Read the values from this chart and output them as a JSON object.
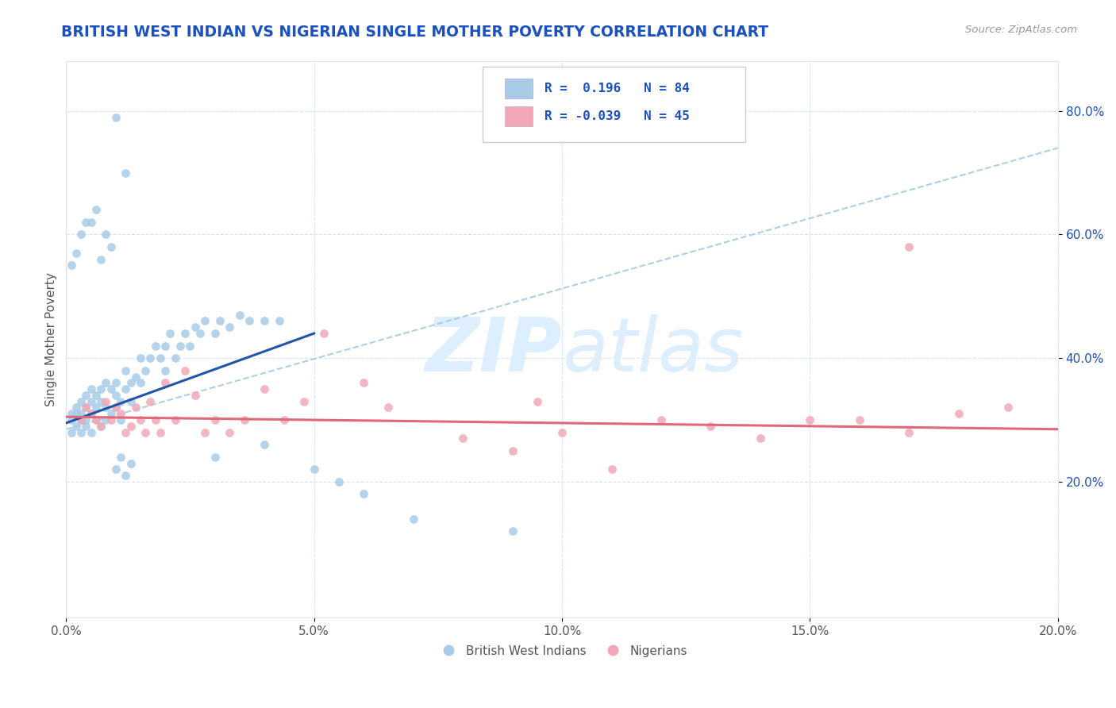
{
  "title": "BRITISH WEST INDIAN VS NIGERIAN SINGLE MOTHER POVERTY CORRELATION CHART",
  "source_text": "Source: ZipAtlas.com",
  "ylabel": "Single Mother Poverty",
  "xlim": [
    0.0,
    0.2
  ],
  "ylim": [
    -0.02,
    0.88
  ],
  "xtick_labels": [
    "0.0%",
    "5.0%",
    "10.0%",
    "15.0%",
    "20.0%"
  ],
  "xtick_vals": [
    0.0,
    0.05,
    0.1,
    0.15,
    0.2
  ],
  "ytick_labels": [
    "20.0%",
    "40.0%",
    "60.0%",
    "80.0%"
  ],
  "ytick_vals": [
    0.2,
    0.4,
    0.6,
    0.8
  ],
  "blue_color": "#a8cce8",
  "pink_color": "#f0a8b8",
  "blue_line_color": "#2255aa",
  "pink_line_color": "#e06878",
  "dash_line_color": "#a8c8e0",
  "watermark_color": "#ddeeff",
  "legend_r_color": "#1a50c0",
  "title_color": "#1a50c0",
  "background_color": "#ffffff",
  "grid_color": "#d8e4f0",
  "blue_line_x0": 0.0,
  "blue_line_y0": 0.295,
  "blue_line_x1": 0.05,
  "blue_line_y1": 0.44,
  "pink_line_x0": 0.0,
  "pink_line_y0": 0.305,
  "pink_line_x1": 0.2,
  "pink_line_y1": 0.285,
  "dash_line_x0": 0.0,
  "dash_line_y0": 0.285,
  "dash_line_x1": 0.2,
  "dash_line_y1": 0.74,
  "blue_x": [
    0.001,
    0.001,
    0.001,
    0.002,
    0.002,
    0.002,
    0.003,
    0.003,
    0.003,
    0.003,
    0.004,
    0.004,
    0.004,
    0.004,
    0.005,
    0.005,
    0.005,
    0.005,
    0.006,
    0.006,
    0.006,
    0.007,
    0.007,
    0.007,
    0.008,
    0.008,
    0.008,
    0.009,
    0.009,
    0.01,
    0.01,
    0.01,
    0.011,
    0.011,
    0.012,
    0.012,
    0.013,
    0.013,
    0.014,
    0.015,
    0.015,
    0.016,
    0.017,
    0.018,
    0.019,
    0.02,
    0.02,
    0.021,
    0.022,
    0.023,
    0.024,
    0.025,
    0.026,
    0.027,
    0.028,
    0.03,
    0.031,
    0.033,
    0.035,
    0.037,
    0.04,
    0.043,
    0.001,
    0.002,
    0.003,
    0.004,
    0.005,
    0.006,
    0.007,
    0.008,
    0.009,
    0.01,
    0.011,
    0.012,
    0.013,
    0.03,
    0.04,
    0.05,
    0.055,
    0.06,
    0.07,
    0.09,
    0.01,
    0.012
  ],
  "blue_y": [
    0.3,
    0.31,
    0.28,
    0.32,
    0.29,
    0.31,
    0.3,
    0.33,
    0.28,
    0.31,
    0.34,
    0.3,
    0.32,
    0.29,
    0.33,
    0.31,
    0.35,
    0.28,
    0.34,
    0.32,
    0.3,
    0.35,
    0.33,
    0.29,
    0.36,
    0.32,
    0.3,
    0.35,
    0.31,
    0.34,
    0.32,
    0.36,
    0.33,
    0.3,
    0.35,
    0.38,
    0.36,
    0.33,
    0.37,
    0.36,
    0.4,
    0.38,
    0.4,
    0.42,
    0.4,
    0.42,
    0.38,
    0.44,
    0.4,
    0.42,
    0.44,
    0.42,
    0.45,
    0.44,
    0.46,
    0.44,
    0.46,
    0.45,
    0.47,
    0.46,
    0.46,
    0.46,
    0.55,
    0.57,
    0.6,
    0.62,
    0.62,
    0.64,
    0.56,
    0.6,
    0.58,
    0.22,
    0.24,
    0.21,
    0.23,
    0.24,
    0.26,
    0.22,
    0.2,
    0.18,
    0.14,
    0.12,
    0.79,
    0.7
  ],
  "pink_x": [
    0.003,
    0.004,
    0.005,
    0.006,
    0.007,
    0.008,
    0.009,
    0.01,
    0.011,
    0.012,
    0.013,
    0.014,
    0.015,
    0.016,
    0.017,
    0.018,
    0.019,
    0.02,
    0.022,
    0.024,
    0.026,
    0.028,
    0.03,
    0.033,
    0.036,
    0.04,
    0.044,
    0.048,
    0.052,
    0.06,
    0.065,
    0.08,
    0.09,
    0.095,
    0.1,
    0.11,
    0.12,
    0.13,
    0.14,
    0.15,
    0.16,
    0.17,
    0.18,
    0.19,
    0.17
  ],
  "pink_y": [
    0.3,
    0.32,
    0.31,
    0.3,
    0.29,
    0.33,
    0.3,
    0.32,
    0.31,
    0.28,
    0.29,
    0.32,
    0.3,
    0.28,
    0.33,
    0.3,
    0.28,
    0.36,
    0.3,
    0.38,
    0.34,
    0.28,
    0.3,
    0.28,
    0.3,
    0.35,
    0.3,
    0.33,
    0.44,
    0.36,
    0.32,
    0.27,
    0.25,
    0.33,
    0.28,
    0.22,
    0.3,
    0.29,
    0.27,
    0.3,
    0.3,
    0.28,
    0.31,
    0.32,
    0.58
  ]
}
